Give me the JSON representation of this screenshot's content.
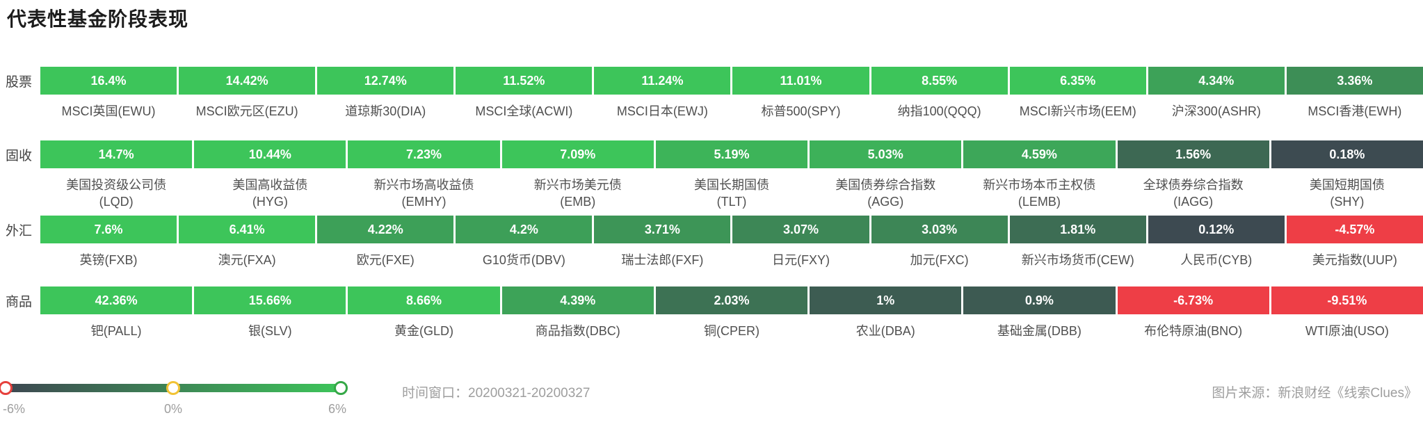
{
  "title": "代表性基金阶段表现",
  "chart_data": {
    "type": "heatmap",
    "title": "代表性基金阶段表现",
    "unit": "%",
    "time_window": "20200321-20200327",
    "color_scale": {
      "domain_min": -6,
      "domain_mid": 0,
      "domain_max": 6,
      "negative_color": "#EE3E46",
      "zero_color": "#3D4751",
      "positive_max_color": "#3DC55A"
    },
    "legend": {
      "ticks": [
        "-6%",
        "0%",
        "6%"
      ],
      "gradient": [
        "#3D4751",
        "#3DC55A"
      ],
      "handle_colors": [
        "#E6403C",
        "#F2C335",
        "#35A847"
      ]
    },
    "rows": [
      {
        "category": "股票",
        "items": [
          {
            "label": "MSCI英国(EWU)",
            "value": 16.4,
            "display": "16.4%",
            "color": "#3DC55A"
          },
          {
            "label": "MSCI欧元区(EZU)",
            "value": 14.42,
            "display": "14.42%",
            "color": "#3DC55A"
          },
          {
            "label": "道琼斯30(DIA)",
            "value": 12.74,
            "display": "12.74%",
            "color": "#3DC55A"
          },
          {
            "label": "MSCI全球(ACWI)",
            "value": 11.52,
            "display": "11.52%",
            "color": "#3DC55A"
          },
          {
            "label": "MSCI日本(EWJ)",
            "value": 11.24,
            "display": "11.24%",
            "color": "#3DC55A"
          },
          {
            "label": "标普500(SPY)",
            "value": 11.01,
            "display": "11.01%",
            "color": "#3DC55A"
          },
          {
            "label": "纳指100(QQQ)",
            "value": 8.55,
            "display": "8.55%",
            "color": "#3DC55A"
          },
          {
            "label": "MSCI新兴市场(EEM)",
            "value": 6.35,
            "display": "6.35%",
            "color": "#3DC55A"
          },
          {
            "label": "沪深300(ASHR)",
            "value": 4.34,
            "display": "4.34%",
            "color": "#3DA258"
          },
          {
            "label": "MSCI香港(EWH)",
            "value": 3.36,
            "display": "3.36%",
            "color": "#3D8E56"
          }
        ]
      },
      {
        "category": "固收",
        "items": [
          {
            "label": "美国投资级公司债",
            "ticker": "(LQD)",
            "value": 14.7,
            "display": "14.7%",
            "color": "#3DC55A"
          },
          {
            "label": "美国高收益债",
            "ticker": "(HYG)",
            "value": 10.44,
            "display": "10.44%",
            "color": "#3DC55A"
          },
          {
            "label": "新兴市场高收益债",
            "ticker": "(EMHY)",
            "value": 7.23,
            "display": "7.23%",
            "color": "#3DC55A"
          },
          {
            "label": "新兴市场美元债",
            "ticker": "(EMB)",
            "value": 7.09,
            "display": "7.09%",
            "color": "#3DC55A"
          },
          {
            "label": "美国长期国债",
            "ticker": "(TLT)",
            "value": 5.19,
            "display": "5.19%",
            "color": "#3DB459"
          },
          {
            "label": "美国债券综合指数",
            "ticker": "(AGG)",
            "value": 5.03,
            "display": "5.03%",
            "color": "#3DB159"
          },
          {
            "label": "新兴市场本币主权债",
            "ticker": "(LEMB)",
            "value": 4.59,
            "display": "4.59%",
            "color": "#3DA759"
          },
          {
            "label": "全球债券综合指数",
            "ticker": "(IAGG)",
            "value": 1.56,
            "display": "1.56%",
            "color": "#3D6853"
          },
          {
            "label": "美国短期国债",
            "ticker": "(SHY)",
            "value": 0.18,
            "display": "0.18%",
            "color": "#3D4B51"
          }
        ]
      },
      {
        "category": "外汇",
        "items": [
          {
            "label": "英镑(FXB)",
            "value": 7.6,
            "display": "7.6%",
            "color": "#3DC55A"
          },
          {
            "label": "澳元(FXA)",
            "value": 6.41,
            "display": "6.41%",
            "color": "#3DC55A"
          },
          {
            "label": "欧元(FXE)",
            "value": 4.22,
            "display": "4.22%",
            "color": "#3DA058"
          },
          {
            "label": "G10货币(DBV)",
            "value": 4.2,
            "display": "4.2%",
            "color": "#3D9F58"
          },
          {
            "label": "瑞士法郎(FXF)",
            "value": 3.71,
            "display": "3.71%",
            "color": "#3D9557"
          },
          {
            "label": "日元(FXY)",
            "value": 3.07,
            "display": "3.07%",
            "color": "#3D8756"
          },
          {
            "label": "加元(FXC)",
            "value": 3.03,
            "display": "3.03%",
            "color": "#3D8656"
          },
          {
            "label": "新兴市场货币(CEW)",
            "value": 1.81,
            "display": "1.81%",
            "color": "#3D6D54"
          },
          {
            "label": "人民币(CYB)",
            "value": 0.12,
            "display": "0.12%",
            "color": "#3D4A51"
          },
          {
            "label": "美元指数(UUP)",
            "value": -4.57,
            "display": "-4.57%",
            "color": "#EE3E46"
          }
        ]
      },
      {
        "category": "商品",
        "items": [
          {
            "label": "钯(PALL)",
            "value": 42.36,
            "display": "42.36%",
            "color": "#3DC55A"
          },
          {
            "label": "银(SLV)",
            "value": 15.66,
            "display": "15.66%",
            "color": "#3DC55A"
          },
          {
            "label": "黄金(GLD)",
            "value": 8.66,
            "display": "8.66%",
            "color": "#3DC55A"
          },
          {
            "label": "商品指数(DBC)",
            "value": 4.39,
            "display": "4.39%",
            "color": "#3DA358"
          },
          {
            "label": "铜(CPER)",
            "value": 2.03,
            "display": "2.03%",
            "color": "#3D7254"
          },
          {
            "label": "农业(DBA)",
            "value": 1,
            "display": "1%",
            "color": "#3D5C52"
          },
          {
            "label": "基础金属(DBB)",
            "value": 0.9,
            "display": "0.9%",
            "color": "#3D5A52"
          },
          {
            "label": "布伦特原油(BNO)",
            "value": -6.73,
            "display": "-6.73%",
            "color": "#EE3E46"
          },
          {
            "label": "WTI原油(USO)",
            "value": -9.51,
            "display": "-9.51%",
            "color": "#EE3E46"
          }
        ]
      }
    ]
  },
  "footer": {
    "time_window_label": "时间窗口：20200321-20200327",
    "source_label": "图片来源：新浪财经《线索Clues》"
  }
}
